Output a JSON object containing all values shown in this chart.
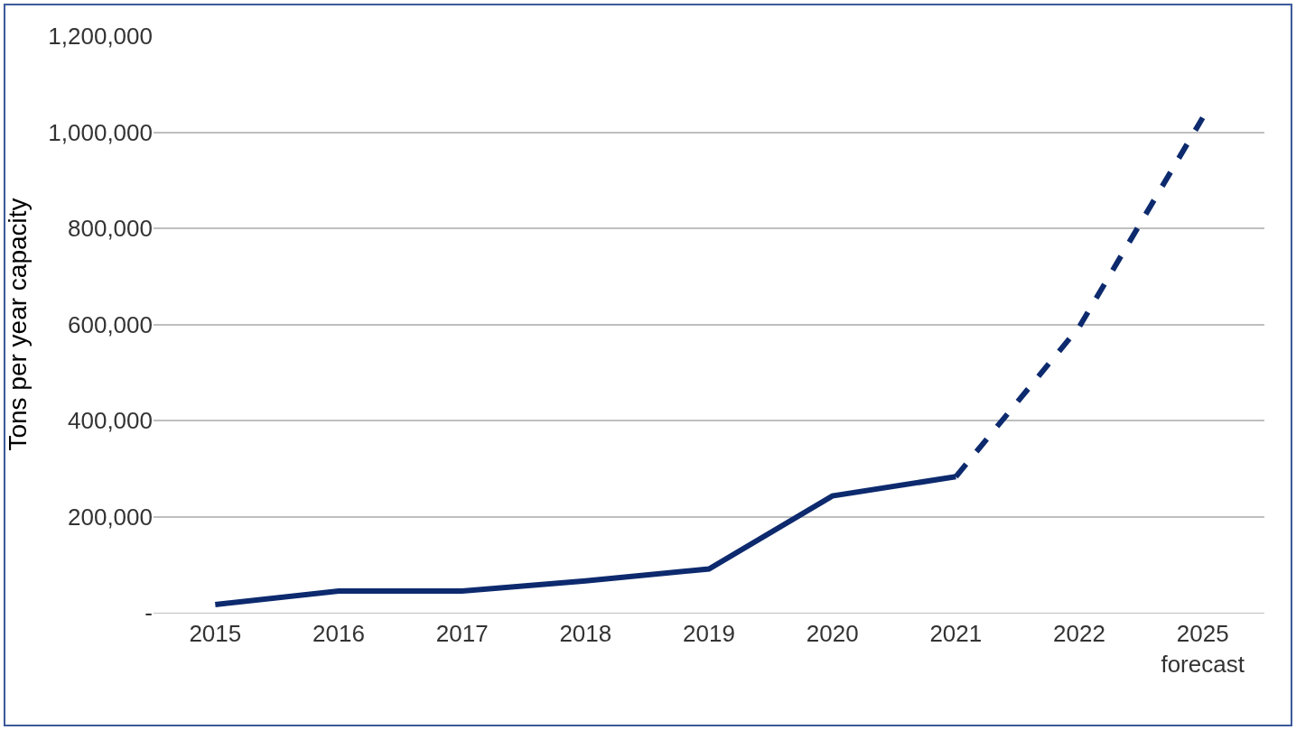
{
  "chart_data": {
    "type": "line",
    "ylabel": "Tons per year capacity",
    "categories": [
      "2015",
      "2016",
      "2017",
      "2018",
      "2019",
      "2020",
      "2021",
      "2022",
      "2025\nforecast"
    ],
    "series": [
      {
        "color": "#0d2a6e",
        "line_style": "solid",
        "values": [
          17000,
          45000,
          45000,
          66000,
          91000,
          243000,
          283000,
          null,
          null
        ]
      },
      {
        "color": "#0d2a6e",
        "line_style": "dashed",
        "values": [
          null,
          null,
          null,
          null,
          null,
          null,
          283000,
          595000,
          1030000
        ]
      }
    ],
    "ylim": [
      0,
      1200000
    ],
    "yticks": [
      {
        "value": 0,
        "label": "-"
      },
      {
        "value": 200000,
        "label": "200,000"
      },
      {
        "value": 400000,
        "label": "400,000"
      },
      {
        "value": 600000,
        "label": "600,000"
      },
      {
        "value": 800000,
        "label": "800,000"
      },
      {
        "value": 1000000,
        "label": "1,000,000"
      },
      {
        "value": 1200000,
        "label": "1,200,000"
      }
    ],
    "grid": "y",
    "marker": "none"
  }
}
